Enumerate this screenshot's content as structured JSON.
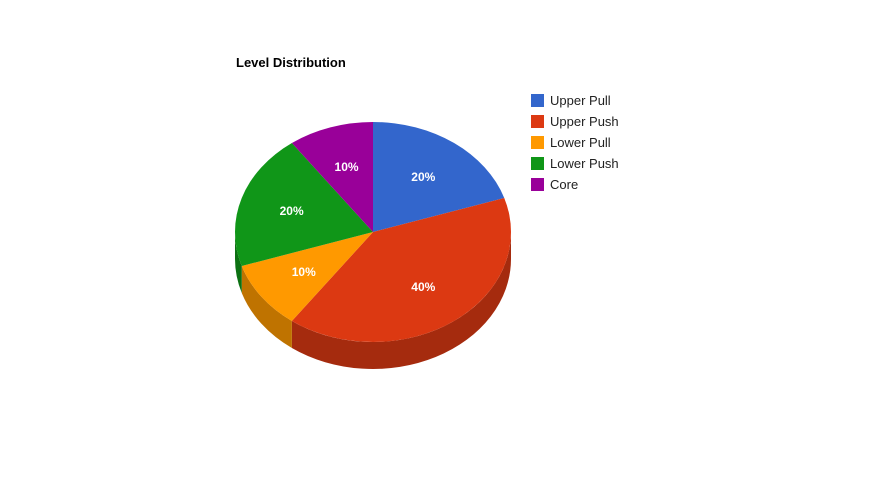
{
  "chart_data": {
    "type": "pie",
    "title": "Level Distribution",
    "style": "3d",
    "legend_position": "right",
    "slices": [
      {
        "name": "Upper Pull",
        "value": 20,
        "label": "20%",
        "color": "#3366cc"
      },
      {
        "name": "Upper Push",
        "value": 40,
        "label": "40%",
        "color": "#dc3912"
      },
      {
        "name": "Lower Pull",
        "value": 10,
        "label": "10%",
        "color": "#ff9900"
      },
      {
        "name": "Lower Push",
        "value": 20,
        "label": "20%",
        "color": "#109618"
      },
      {
        "name": "Core",
        "value": 10,
        "label": "10%",
        "color": "#990099"
      }
    ]
  }
}
